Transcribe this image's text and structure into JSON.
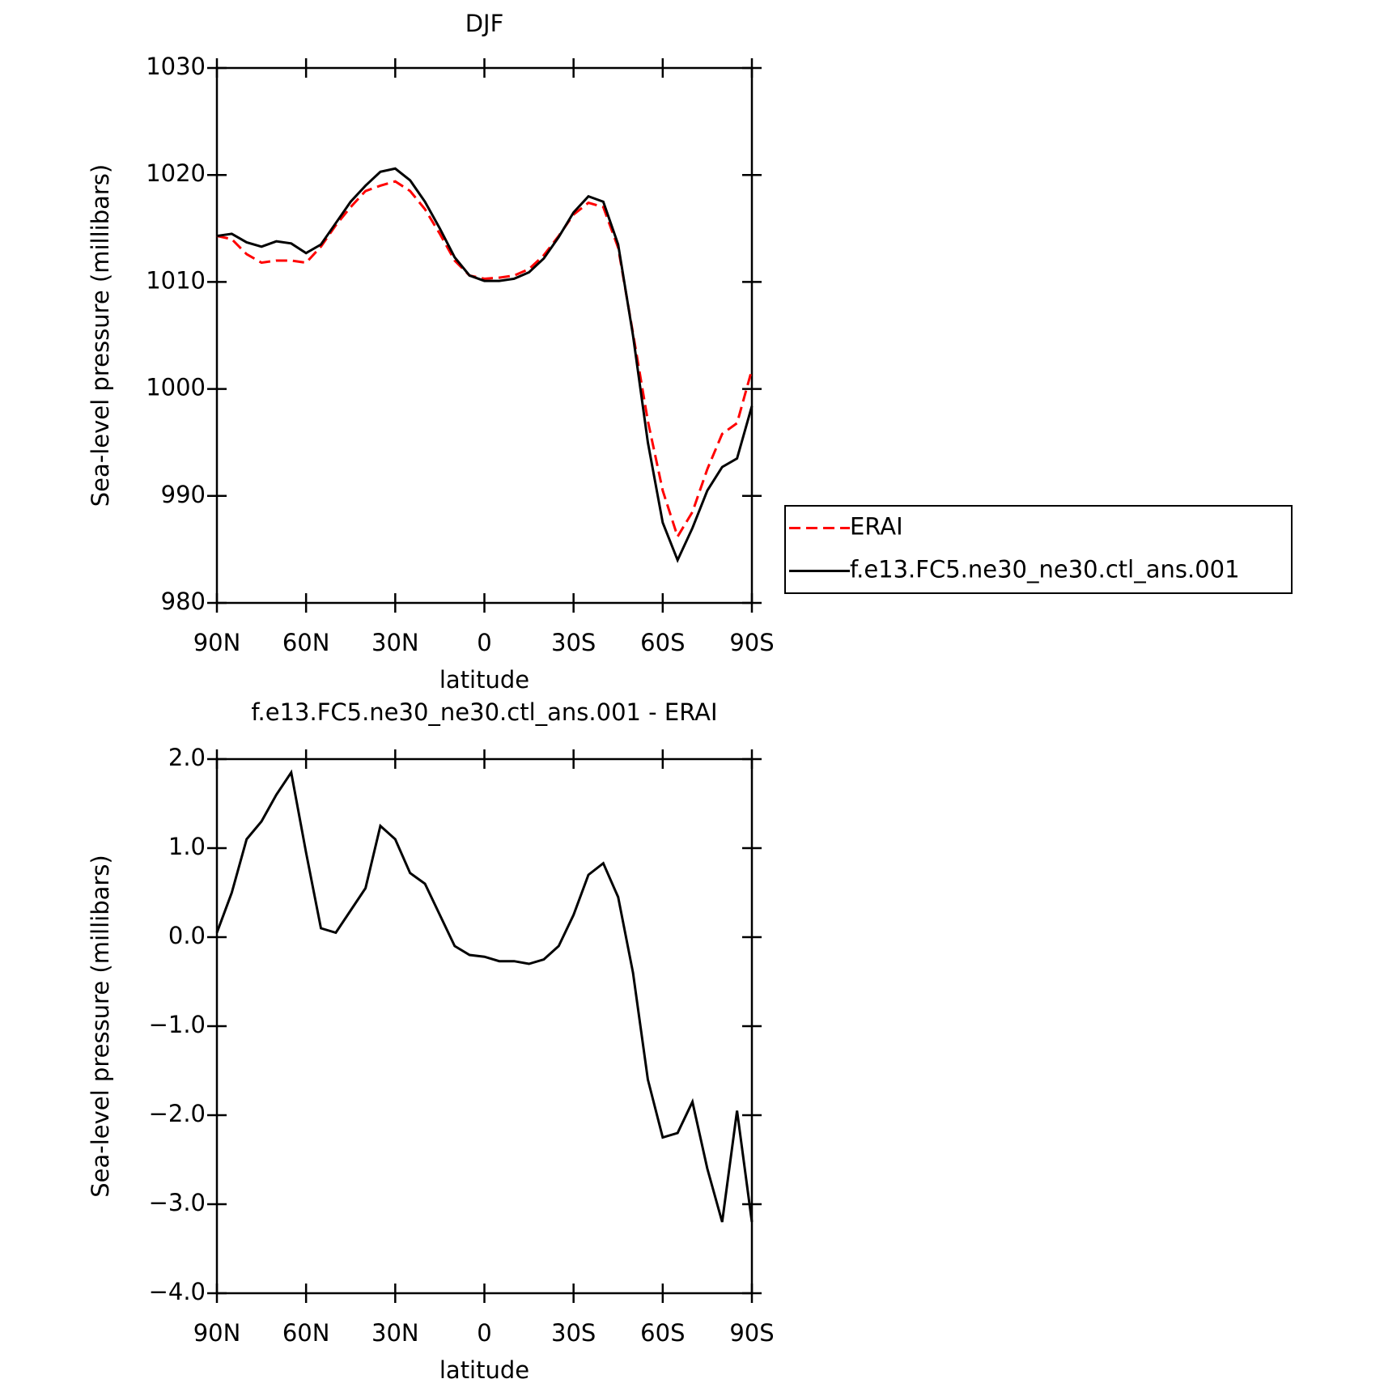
{
  "chart_data": [
    {
      "type": "line",
      "title": "DJF",
      "x_label": "latitude",
      "y_label": "Sea-level pressure (millibars)",
      "x": [
        90,
        85,
        80,
        75,
        70,
        65,
        60,
        55,
        50,
        45,
        40,
        35,
        30,
        25,
        20,
        15,
        10,
        5,
        0,
        -5,
        -10,
        -15,
        -20,
        -25,
        -30,
        -35,
        -40,
        -45,
        -50,
        -55,
        -60,
        -65,
        -70,
        -75,
        -80,
        -85,
        -90
      ],
      "series": [
        {
          "name": "ERAI",
          "color": "#ff0000",
          "line_style": "dashed",
          "values": [
            1014.3,
            1014.0,
            1012.6,
            1011.8,
            1012.0,
            1012.0,
            1011.8,
            1013.3,
            1015.3,
            1017.0,
            1018.5,
            1019.0,
            1019.4,
            1018.5,
            1016.8,
            1014.5,
            1012.0,
            1010.6,
            1010.3,
            1010.4,
            1010.6,
            1011.2,
            1012.5,
            1014.3,
            1016.3,
            1017.4,
            1017.0,
            1013.2,
            1005.2,
            997,
            990.5,
            986.2,
            988.5,
            992.5,
            995.8,
            996.8,
            1001.8
          ]
        },
        {
          "name": "f.e13.FC5.ne30_ne30.ctl_ans.001",
          "color": "#000000",
          "line_style": "solid",
          "values": [
            1014.3,
            1014.5,
            1013.7,
            1013.3,
            1013.8,
            1013.6,
            1012.7,
            1013.5,
            1015.5,
            1017.5,
            1019.0,
            1020.3,
            1020.6,
            1019.5,
            1017.5,
            1015.0,
            1012.3,
            1010.6,
            1010.1,
            1010.1,
            1010.3,
            1010.9,
            1012.2,
            1014.2,
            1016.5,
            1018.0,
            1017.5,
            1013.5,
            1005,
            995,
            987.5,
            984.0,
            987.0,
            990.5,
            992.7,
            993.5,
            998.4
          ]
        }
      ],
      "xlim": [
        90,
        -90
      ],
      "xticks": [
        {
          "value": 90,
          "label": "90N"
        },
        {
          "value": 60,
          "label": "60N"
        },
        {
          "value": 30,
          "label": "30N"
        },
        0,
        {
          "value": -30,
          "label": "30S"
        },
        {
          "value": -60,
          "label": "60S"
        },
        {
          "value": -90,
          "label": "90S"
        }
      ],
      "ylim": [
        980,
        1030
      ],
      "yticks": [
        980,
        990,
        1000,
        1010,
        1020,
        1030
      ],
      "legend": "right"
    },
    {
      "type": "line",
      "title": "f.e13.FC5.ne30_ne30.ctl_ans.001 - ERAI",
      "x_label": "latitude",
      "y_label": "Sea-level pressure (millibars)",
      "x": [
        90,
        85,
        80,
        75,
        70,
        65,
        60,
        55,
        50,
        45,
        40,
        35,
        30,
        25,
        20,
        15,
        10,
        5,
        0,
        -5,
        -10,
        -15,
        -20,
        -25,
        -30,
        -35,
        -40,
        -45,
        -50,
        -55,
        -60,
        -65,
        -70,
        -75,
        -80,
        -85,
        -90
      ],
      "color": "#000000",
      "values": [
        0.05,
        0.5,
        1.1,
        1.3,
        1.6,
        1.85,
        0.95,
        0.1,
        0.05,
        0.3,
        0.55,
        1.25,
        1.1,
        0.72,
        0.6,
        0.25,
        -0.1,
        -0.2,
        -0.22,
        -0.27,
        -0.27,
        -0.3,
        -0.25,
        -0.1,
        0.25,
        0.7,
        0.83,
        0.45,
        -0.4,
        -1.6,
        -2.25,
        -2.2,
        -1.85,
        -2.6,
        -3.2,
        -1.95,
        -3.2
      ],
      "xlim": [
        90,
        -90
      ],
      "xticks": [
        {
          "value": 90,
          "label": "90N"
        },
        {
          "value": 60,
          "label": "60N"
        },
        {
          "value": 30,
          "label": "30N"
        },
        0,
        {
          "value": -30,
          "label": "30S"
        },
        {
          "value": -60,
          "label": "60S"
        },
        {
          "value": -90,
          "label": "90S"
        }
      ],
      "ylim": [
        -4,
        2
      ],
      "yticks": [
        {
          "value": -4,
          "label": "−4.0"
        },
        {
          "value": -3,
          "label": "−3.0"
        },
        {
          "value": -2,
          "label": "−2.0"
        },
        {
          "value": -1,
          "label": "−1.0"
        },
        {
          "value": 0,
          "label": "0.0"
        },
        {
          "value": 1,
          "label": "1.0"
        },
        {
          "value": 2,
          "label": "2.0"
        }
      ]
    }
  ]
}
